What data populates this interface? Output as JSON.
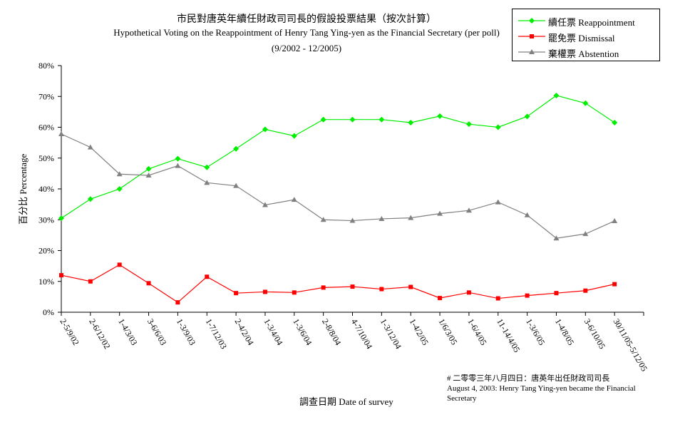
{
  "titles": {
    "zh": "市民對唐英年續任財政司司長的假設投票結果（按次計算）",
    "en": "Hypothetical Voting on the Reappointment of Henry Tang Ying-yen as the Financial Secretary (per poll)",
    "period": "(9/2002 - 12/2005)"
  },
  "note": {
    "zh": "# 二零零三年八月四日：唐英年出任財政司司長",
    "en": "August 4, 2003: Henry Tang Ying-yen became the Financial Secretary"
  },
  "chart_data": {
    "type": "line",
    "xlabel": "調查日期 Date of survey",
    "ylabel": "百分比 Percentage",
    "ylim": [
      0,
      80
    ],
    "yticks": [
      "0%",
      "10%",
      "20%",
      "30%",
      "40%",
      "50%",
      "60%",
      "70%",
      "80%"
    ],
    "categories": [
      "2-5/9/02",
      "2-6/12/02",
      "1-4/3/03",
      "3-6/6/03",
      "1-3/9/03",
      "1-7/12/03",
      "2-4/2/04",
      "1-3/4/04",
      "1-3/6/04",
      "2-8/8/04",
      "4-7/10/04",
      "1-3/12/04",
      "1-4/2/05",
      "1/6/3/05",
      "1-6/4/05",
      "11-14/4/05",
      "1-3/6/05",
      "1-4/8/05",
      "3-6/10/05",
      "30/11/05-5/12/05"
    ],
    "legend_position": "top-right",
    "grid": false,
    "series": [
      {
        "name": "續任票 Reappointment",
        "color": "#00ee00",
        "marker": "diamond",
        "values": [
          30.5,
          36.7,
          40.0,
          46.5,
          49.8,
          47.0,
          53.0,
          59.3,
          57.2,
          62.5,
          62.5,
          62.5,
          61.5,
          63.6,
          61.0,
          60.0,
          63.5,
          70.3,
          67.8,
          61.5
        ]
      },
      {
        "name": "罷免票 Dismissal",
        "color": "#ff0000",
        "marker": "square",
        "values": [
          12.0,
          10.0,
          15.4,
          9.4,
          3.2,
          11.5,
          6.2,
          6.6,
          6.4,
          8.0,
          8.3,
          7.5,
          8.2,
          4.6,
          6.4,
          4.5,
          5.4,
          6.2,
          7.0,
          9.1
        ]
      },
      {
        "name": "棄權票 Abstention",
        "color": "#808080",
        "marker": "triangle",
        "values": [
          57.8,
          53.5,
          44.8,
          44.4,
          47.5,
          42.0,
          41.0,
          34.8,
          36.5,
          30.0,
          29.7,
          30.3,
          30.6,
          32.0,
          33.0,
          35.7,
          31.5,
          24.0,
          25.4,
          29.6
        ]
      }
    ]
  }
}
